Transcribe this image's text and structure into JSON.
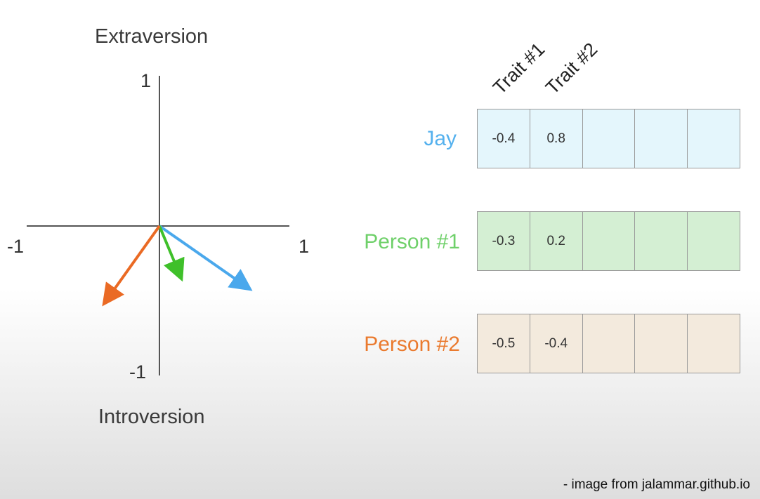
{
  "plot": {
    "top_label": "Extraversion",
    "bottom_label": "Introversion",
    "tick_left": "-1",
    "tick_right": "1",
    "tick_top": "1",
    "tick_bottom": "-1"
  },
  "headers": [
    "Trait #1",
    "Trait #2"
  ],
  "rows": [
    {
      "name": "Jay",
      "color": "#55b1ee",
      "bg": "#e4f6fc",
      "values": [
        "-0.4",
        "0.8",
        "",
        "",
        ""
      ]
    },
    {
      "name": "Person #1",
      "color": "#6fd06a",
      "bg": "#d4efd3",
      "values": [
        "-0.3",
        "0.2",
        "",
        "",
        ""
      ]
    },
    {
      "name": "Person #2",
      "color": "#ea7a2e",
      "bg": "#f3eadd",
      "values": [
        "-0.5",
        "-0.4",
        "",
        "",
        ""
      ]
    }
  ],
  "arrow_colors": {
    "jay": "#4aa8ec",
    "person1": "#3fc02a",
    "person2": "#ea6a24"
  },
  "caption": "- image from jalammar.github.io"
}
